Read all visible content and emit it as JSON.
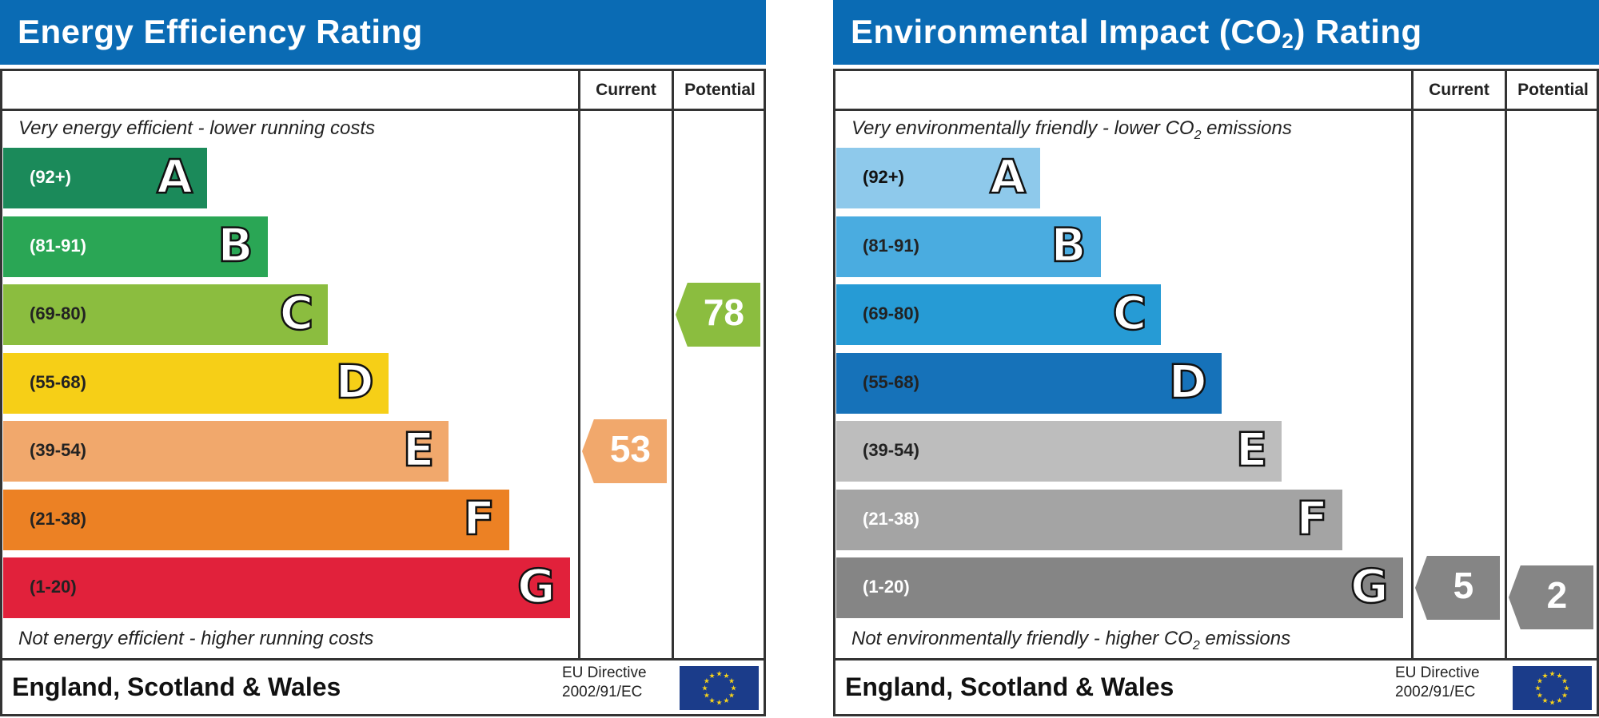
{
  "charts": [
    {
      "title": "Energy Efficiency Rating",
      "title_sub": "",
      "col_current": "Current",
      "col_potential": "Potential",
      "top_note": "Very energy efficient - lower running costs",
      "bottom_note": "Not energy efficient - higher running costs",
      "footer": "England, Scotland & Wales",
      "eu_line1": "EU Directive",
      "eu_line2": "2002/91/EC",
      "bands": [
        {
          "letter": "A",
          "range": "(92+)",
          "color": "#1b8a5a",
          "text_color": "#ffffff"
        },
        {
          "letter": "B",
          "range": "(81-91)",
          "color": "#2aa655",
          "text_color": "#ffffff"
        },
        {
          "letter": "C",
          "range": "(69-80)",
          "color": "#8bbd3f",
          "text_color": "#222222"
        },
        {
          "letter": "D",
          "range": "(55-68)",
          "color": "#f6cf17",
          "text_color": "#222222"
        },
        {
          "letter": "E",
          "range": "(39-54)",
          "color": "#f1a86c",
          "text_color": "#222222"
        },
        {
          "letter": "F",
          "range": "(21-38)",
          "color": "#ec8124",
          "text_color": "#222222"
        },
        {
          "letter": "G",
          "range": "(1-20)",
          "color": "#e1213b",
          "text_color": "#222222"
        }
      ],
      "current": {
        "value": "53",
        "band": "E",
        "color": "#f1a86c"
      },
      "potential": {
        "value": "78",
        "band": "C",
        "color": "#8bbd3f"
      }
    },
    {
      "title": "Environmental Impact (CO",
      "title_sub": "2",
      "title_end": ") Rating",
      "col_current": "Current",
      "col_potential": "Potential",
      "top_note": "Very environmentally friendly - lower CO",
      "top_note_end": " emissions",
      "bottom_note": "Not environmentally friendly - higher CO",
      "bottom_note_end": " emissions",
      "sub": "2",
      "footer": "England, Scotland & Wales",
      "eu_line1": "EU Directive",
      "eu_line2": "2002/91/EC",
      "bands": [
        {
          "letter": "A",
          "range": "(92+)",
          "color": "#8ec9eb",
          "text_color": "#111111"
        },
        {
          "letter": "B",
          "range": "(81-91)",
          "color": "#4aace0",
          "text_color": "#222222"
        },
        {
          "letter": "C",
          "range": "(69-80)",
          "color": "#269bd5",
          "text_color": "#222222"
        },
        {
          "letter": "D",
          "range": "(55-68)",
          "color": "#1672b9",
          "text_color": "#222222"
        },
        {
          "letter": "E",
          "range": "(39-54)",
          "color": "#bdbdbd",
          "text_color": "#222222"
        },
        {
          "letter": "F",
          "range": "(21-38)",
          "color": "#a4a4a4",
          "text_color": "#ffffff"
        },
        {
          "letter": "G",
          "range": "(1-20)",
          "color": "#858585",
          "text_color": "#ffffff"
        }
      ],
      "current": {
        "value": "5",
        "band": "G",
        "color": "#858585"
      },
      "potential": {
        "value": "2",
        "band": "G",
        "color": "#858585"
      }
    }
  ],
  "chart_data": [
    {
      "type": "bar",
      "title": "Energy Efficiency Rating",
      "categories": [
        "A",
        "B",
        "C",
        "D",
        "E",
        "F",
        "G"
      ],
      "ranges": [
        "92+",
        "81-91",
        "69-80",
        "55-68",
        "39-54",
        "21-38",
        "1-20"
      ],
      "current": 53,
      "potential": 78
    },
    {
      "type": "bar",
      "title": "Environmental Impact (CO2) Rating",
      "categories": [
        "A",
        "B",
        "C",
        "D",
        "E",
        "F",
        "G"
      ],
      "ranges": [
        "92+",
        "81-91",
        "69-80",
        "55-68",
        "39-54",
        "21-38",
        "1-20"
      ],
      "current": 5,
      "potential": 2
    }
  ]
}
